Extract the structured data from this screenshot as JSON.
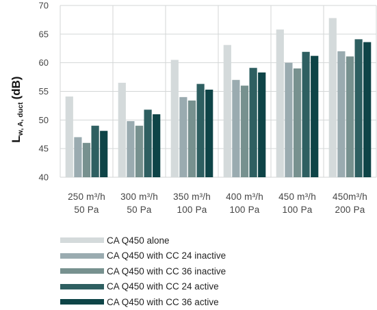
{
  "chart_data": {
    "type": "bar",
    "ylabel": "L",
    "ylabel_sub": "w, A, duct",
    "ylabel_unit": "(dB)",
    "ylim": [
      40,
      70
    ],
    "yticks": [
      40,
      45,
      50,
      55,
      60,
      65,
      70
    ],
    "grid": "horizontal and vertical",
    "legend_position": "bottom",
    "categories": [
      [
        "250 m³/h",
        "50 Pa"
      ],
      [
        "300 m³/h",
        "50 Pa"
      ],
      [
        "350 m³/h",
        "100 Pa"
      ],
      [
        "400 m³/h",
        "100 Pa"
      ],
      [
        "450 m³/h",
        "100 Pa"
      ],
      [
        "450m³/h",
        "200 Pa"
      ]
    ],
    "series": [
      {
        "name": "CA Q450 alone",
        "color": "#d4dadb",
        "values": [
          54.1,
          56.5,
          60.5,
          63.1,
          65.8,
          67.8
        ]
      },
      {
        "name": "CA Q450 with CC 24 inactive",
        "color": "#9aabb0",
        "values": [
          47.0,
          49.8,
          54.0,
          57.0,
          60.0,
          62.0
        ]
      },
      {
        "name": "CA Q450 with CC 36 inactive",
        "color": "#77918f",
        "values": [
          46.0,
          49.0,
          53.4,
          56.0,
          59.0,
          61.1
        ]
      },
      {
        "name": "CA Q450 with CC 24 active",
        "color": "#2e5f61",
        "values": [
          49.0,
          51.8,
          56.3,
          59.1,
          61.9,
          64.1
        ]
      },
      {
        "name": "CA Q450 with CC 36 active",
        "color": "#0e4447",
        "values": [
          48.1,
          51.0,
          55.3,
          58.3,
          61.2,
          63.6
        ]
      }
    ]
  }
}
